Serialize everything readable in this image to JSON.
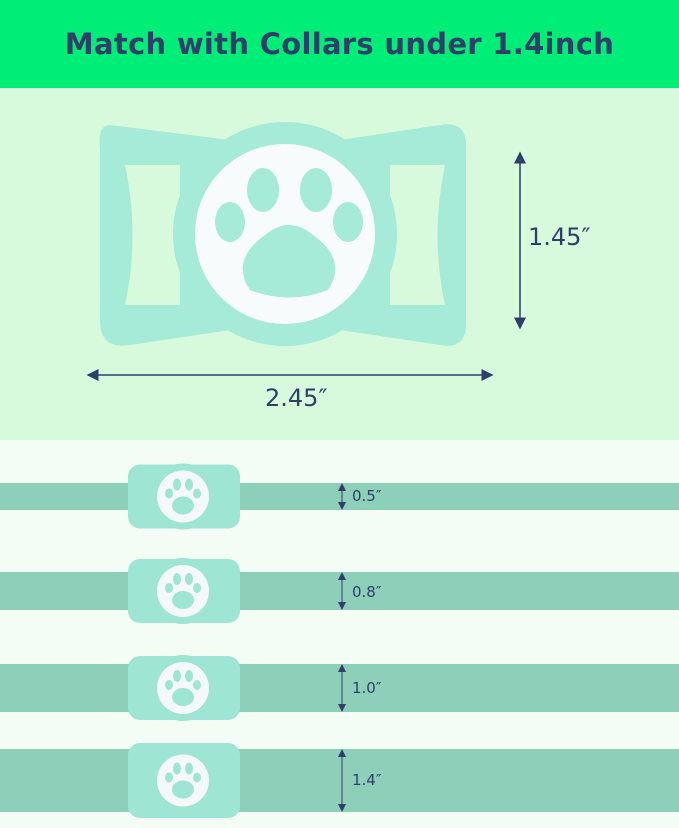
{
  "header": {
    "title": "Match with Collars under 1.4inch"
  },
  "product": {
    "width_label": "2.45″",
    "height_label": "1.45″"
  },
  "collars": [
    {
      "width_label": "0.5″"
    },
    {
      "width_label": "0.8″"
    },
    {
      "width_label": "1.0″"
    },
    {
      "width_label": "1.4″"
    }
  ],
  "colors": {
    "header_bg": "#00ee77",
    "text": "#2e3f6a",
    "holder": "#9fe5d3",
    "strap": "#8ecfb9",
    "top_bg": "#d8fadc"
  }
}
